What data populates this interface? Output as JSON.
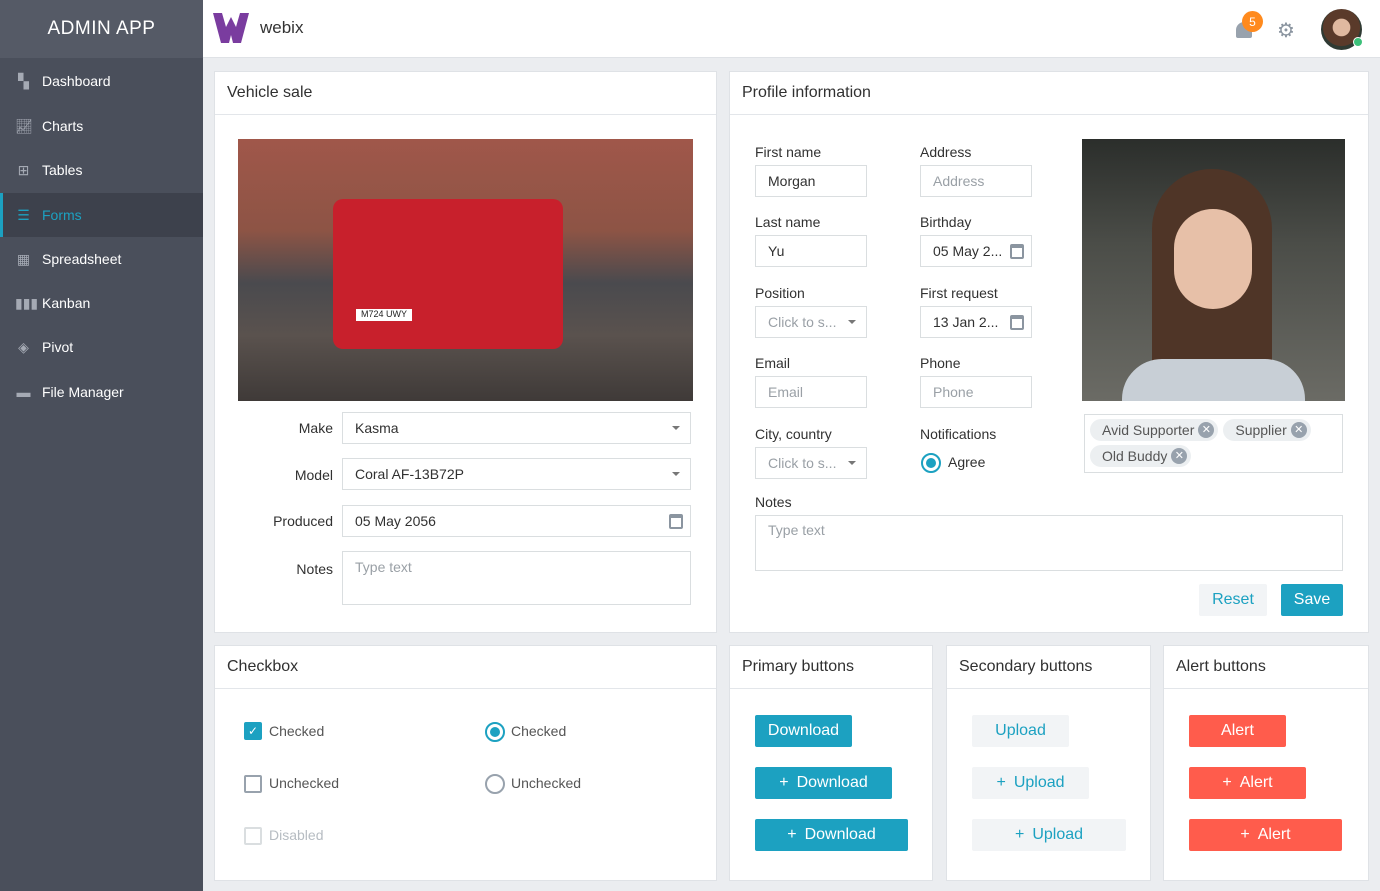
{
  "app": {
    "title": "ADMIN APP",
    "logo_text": "webix"
  },
  "sidebar": {
    "items": [
      {
        "label": "Dashboard",
        "icon": "dashboard-icon"
      },
      {
        "label": "Charts",
        "icon": "chart-icon"
      },
      {
        "label": "Tables",
        "icon": "table-icon"
      },
      {
        "label": "Forms",
        "icon": "forms-icon",
        "active": true
      },
      {
        "label": "Spreadsheet",
        "icon": "spreadsheet-icon"
      },
      {
        "label": "Kanban",
        "icon": "kanban-icon"
      },
      {
        "label": "Pivot",
        "icon": "pivot-icon"
      },
      {
        "label": "File Manager",
        "icon": "folder-icon"
      }
    ]
  },
  "header": {
    "notifications": "5",
    "accent": "#1ca1c1",
    "badge_color": "#ff8a1d"
  },
  "vehicle": {
    "title": "Vehicle sale",
    "make_label": "Make",
    "make": "Kasma",
    "model_label": "Model",
    "model": "Coral AF-13B72P",
    "produced_label": "Produced",
    "produced": "05 May 2056",
    "notes_label": "Notes",
    "notes_placeholder": "Type text"
  },
  "profile": {
    "title": "Profile information",
    "first_name_label": "First name",
    "first_name": "Morgan",
    "address_label": "Address",
    "address_placeholder": "Address",
    "last_name_label": "Last name",
    "last_name": "Yu",
    "birthday_label": "Birthday",
    "birthday": "05 May 2...",
    "position_label": "Position",
    "position_placeholder": "Click to s...",
    "first_request_label": "First request",
    "first_request": "13 Jan 2...",
    "email_label": "Email",
    "email_placeholder": "Email",
    "phone_label": "Phone",
    "phone_placeholder": "Phone",
    "city_label": "City, country",
    "city_placeholder": "Click to s...",
    "notifications_label": "Notifications",
    "notifications_option": "Agree",
    "tags": [
      "Avid Supporter",
      "Supplier",
      "Old Buddy"
    ],
    "notes_label": "Notes",
    "notes_placeholder": "Type text",
    "reset": "Reset",
    "save": "Save"
  },
  "checkbox": {
    "title": "Checkbox",
    "checked": "Checked",
    "unchecked": "Unchecked",
    "disabled": "Disabled",
    "radio_checked": "Checked",
    "radio_unchecked": "Unchecked"
  },
  "primary": {
    "title": "Primary buttons",
    "b1": "Download",
    "b2": "Download",
    "b3": "Download"
  },
  "secondary": {
    "title": "Secondary buttons",
    "b1": "Upload",
    "b2": "Upload",
    "b3": "Upload"
  },
  "alert": {
    "title": "Alert buttons",
    "b1": "Alert",
    "b2": "Alert",
    "b3": "Alert",
    "color": "#ff5c4c"
  }
}
